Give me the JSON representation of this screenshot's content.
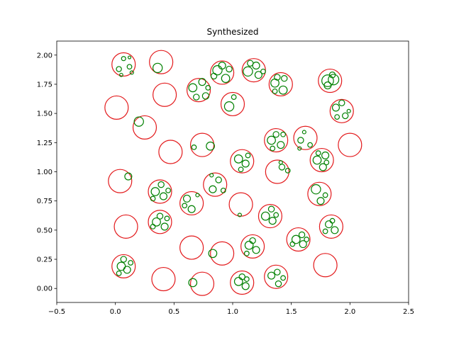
{
  "chart_data": {
    "type": "scatter",
    "title": "Synthesized",
    "xlabel": "",
    "ylabel": "",
    "xlim": [
      -0.5,
      2.5
    ],
    "ylim": [
      -0.12,
      2.12
    ],
    "xticks": [
      -0.5,
      0.0,
      0.5,
      1.0,
      1.5,
      2.0,
      2.5
    ],
    "xtick_labels": [
      "−0.5",
      "0.0",
      "0.5",
      "1.0",
      "1.5",
      "2.0",
      "2.5"
    ],
    "yticks": [
      0.0,
      0.25,
      0.5,
      0.75,
      1.0,
      1.25,
      1.5,
      1.75,
      2.0
    ],
    "ytick_labels": [
      "0.00",
      "0.25",
      "0.50",
      "0.75",
      "1.00",
      "1.25",
      "1.50",
      "1.75",
      "2.00"
    ],
    "grid": false,
    "series": [
      {
        "color": "#e31a1c",
        "radius_unit": "data_y",
        "circles": [
          {
            "x": 0.07,
            "y": 1.92,
            "r": 0.1
          },
          {
            "x": 0.39,
            "y": 1.94,
            "r": 0.1
          },
          {
            "x": 0.42,
            "y": 1.66,
            "r": 0.1
          },
          {
            "x": 0.01,
            "y": 1.55,
            "r": 0.1
          },
          {
            "x": 0.25,
            "y": 1.38,
            "r": 0.1
          },
          {
            "x": 0.47,
            "y": 1.17,
            "r": 0.1
          },
          {
            "x": 0.74,
            "y": 1.23,
            "r": 0.1
          },
          {
            "x": 0.71,
            "y": 1.7,
            "r": 0.1
          },
          {
            "x": 0.91,
            "y": 1.85,
            "r": 0.1
          },
          {
            "x": 1.0,
            "y": 1.58,
            "r": 0.1
          },
          {
            "x": 1.18,
            "y": 1.87,
            "r": 0.1
          },
          {
            "x": 1.41,
            "y": 1.75,
            "r": 0.1
          },
          {
            "x": 1.83,
            "y": 1.78,
            "r": 0.1
          },
          {
            "x": 1.93,
            "y": 1.52,
            "r": 0.1
          },
          {
            "x": 1.62,
            "y": 1.29,
            "r": 0.1
          },
          {
            "x": 1.37,
            "y": 1.27,
            "r": 0.1
          },
          {
            "x": 2.0,
            "y": 1.23,
            "r": 0.1
          },
          {
            "x": 1.76,
            "y": 1.1,
            "r": 0.1
          },
          {
            "x": 1.08,
            "y": 1.09,
            "r": 0.1
          },
          {
            "x": 1.38,
            "y": 1.0,
            "r": 0.1
          },
          {
            "x": 0.04,
            "y": 0.92,
            "r": 0.1
          },
          {
            "x": 0.38,
            "y": 0.83,
            "r": 0.1
          },
          {
            "x": 0.85,
            "y": 0.89,
            "r": 0.1
          },
          {
            "x": 0.65,
            "y": 0.73,
            "r": 0.1
          },
          {
            "x": 1.07,
            "y": 0.72,
            "r": 0.1
          },
          {
            "x": 1.74,
            "y": 0.81,
            "r": 0.1
          },
          {
            "x": 0.09,
            "y": 0.53,
            "r": 0.1
          },
          {
            "x": 0.38,
            "y": 0.57,
            "r": 0.1
          },
          {
            "x": 1.32,
            "y": 0.62,
            "r": 0.1
          },
          {
            "x": 1.84,
            "y": 0.53,
            "r": 0.1
          },
          {
            "x": 1.56,
            "y": 0.42,
            "r": 0.1
          },
          {
            "x": 1.17,
            "y": 0.36,
            "r": 0.1
          },
          {
            "x": 0.65,
            "y": 0.35,
            "r": 0.1
          },
          {
            "x": 0.91,
            "y": 0.3,
            "r": 0.1
          },
          {
            "x": 1.79,
            "y": 0.2,
            "r": 0.1
          },
          {
            "x": 0.07,
            "y": 0.19,
            "r": 0.1
          },
          {
            "x": 0.41,
            "y": 0.08,
            "r": 0.1
          },
          {
            "x": 0.74,
            "y": 0.04,
            "r": 0.1
          },
          {
            "x": 1.08,
            "y": 0.05,
            "r": 0.1
          },
          {
            "x": 1.37,
            "y": 0.1,
            "r": 0.1
          }
        ]
      },
      {
        "color": "#008000",
        "radius_unit": "data_y",
        "circles": [
          {
            "x": 0.03,
            "y": 1.88,
            "r": 0.022
          },
          {
            "x": 0.07,
            "y": 1.97,
            "r": 0.018
          },
          {
            "x": 0.12,
            "y": 1.9,
            "r": 0.02
          },
          {
            "x": 0.05,
            "y": 1.83,
            "r": 0.014
          },
          {
            "x": 0.12,
            "y": 1.98,
            "r": 0.012
          },
          {
            "x": 0.14,
            "y": 1.85,
            "r": 0.015
          },
          {
            "x": 0.36,
            "y": 1.89,
            "r": 0.04
          },
          {
            "x": 0.66,
            "y": 1.72,
            "r": 0.035
          },
          {
            "x": 0.74,
            "y": 1.77,
            "r": 0.03
          },
          {
            "x": 0.77,
            "y": 1.65,
            "r": 0.028
          },
          {
            "x": 0.69,
            "y": 1.64,
            "r": 0.025
          },
          {
            "x": 0.79,
            "y": 1.72,
            "r": 0.02
          },
          {
            "x": 0.87,
            "y": 1.87,
            "r": 0.04
          },
          {
            "x": 0.94,
            "y": 1.8,
            "r": 0.035
          },
          {
            "x": 0.91,
            "y": 1.91,
            "r": 0.03
          },
          {
            "x": 0.97,
            "y": 1.88,
            "r": 0.025
          },
          {
            "x": 0.84,
            "y": 1.82,
            "r": 0.025
          },
          {
            "x": 0.97,
            "y": 1.56,
            "r": 0.04
          },
          {
            "x": 1.01,
            "y": 1.64,
            "r": 0.02
          },
          {
            "x": 1.13,
            "y": 1.86,
            "r": 0.04
          },
          {
            "x": 1.2,
            "y": 1.91,
            "r": 0.03
          },
          {
            "x": 1.22,
            "y": 1.83,
            "r": 0.03
          },
          {
            "x": 1.15,
            "y": 1.93,
            "r": 0.025
          },
          {
            "x": 1.26,
            "y": 1.86,
            "r": 0.02
          },
          {
            "x": 1.36,
            "y": 1.76,
            "r": 0.035
          },
          {
            "x": 1.43,
            "y": 1.7,
            "r": 0.035
          },
          {
            "x": 1.38,
            "y": 1.81,
            "r": 0.025
          },
          {
            "x": 1.44,
            "y": 1.8,
            "r": 0.025
          },
          {
            "x": 1.36,
            "y": 1.69,
            "r": 0.02
          },
          {
            "x": 1.81,
            "y": 1.78,
            "r": 0.05
          },
          {
            "x": 1.86,
            "y": 1.79,
            "r": 0.045
          },
          {
            "x": 1.81,
            "y": 1.74,
            "r": 0.03
          },
          {
            "x": 1.85,
            "y": 1.83,
            "r": 0.025
          },
          {
            "x": 1.88,
            "y": 1.55,
            "r": 0.03
          },
          {
            "x": 1.93,
            "y": 1.59,
            "r": 0.025
          },
          {
            "x": 1.96,
            "y": 1.48,
            "r": 0.025
          },
          {
            "x": 1.89,
            "y": 1.47,
            "r": 0.02
          },
          {
            "x": 1.99,
            "y": 1.52,
            "r": 0.015
          },
          {
            "x": 0.2,
            "y": 1.43,
            "r": 0.04
          },
          {
            "x": 0.67,
            "y": 1.21,
            "r": 0.02
          },
          {
            "x": 0.81,
            "y": 1.22,
            "r": 0.035
          },
          {
            "x": 1.33,
            "y": 1.27,
            "r": 0.035
          },
          {
            "x": 1.41,
            "y": 1.23,
            "r": 0.03
          },
          {
            "x": 1.37,
            "y": 1.32,
            "r": 0.025
          },
          {
            "x": 1.34,
            "y": 1.2,
            "r": 0.02
          },
          {
            "x": 1.43,
            "y": 1.32,
            "r": 0.02
          },
          {
            "x": 1.58,
            "y": 1.27,
            "r": 0.025
          },
          {
            "x": 1.66,
            "y": 1.23,
            "r": 0.02
          },
          {
            "x": 1.61,
            "y": 1.34,
            "r": 0.015
          },
          {
            "x": 1.57,
            "y": 1.2,
            "r": 0.015
          },
          {
            "x": 1.72,
            "y": 1.1,
            "r": 0.035
          },
          {
            "x": 1.79,
            "y": 1.14,
            "r": 0.03
          },
          {
            "x": 1.77,
            "y": 1.04,
            "r": 0.03
          },
          {
            "x": 1.8,
            "y": 1.08,
            "r": 0.02
          },
          {
            "x": 1.73,
            "y": 1.16,
            "r": 0.02
          },
          {
            "x": 1.05,
            "y": 1.11,
            "r": 0.035
          },
          {
            "x": 1.11,
            "y": 1.07,
            "r": 0.03
          },
          {
            "x": 1.07,
            "y": 1.02,
            "r": 0.02
          },
          {
            "x": 1.13,
            "y": 1.14,
            "r": 0.02
          },
          {
            "x": 1.42,
            "y": 1.04,
            "r": 0.025
          },
          {
            "x": 1.47,
            "y": 1.01,
            "r": 0.02
          },
          {
            "x": 1.41,
            "y": 1.08,
            "r": 0.015
          },
          {
            "x": 0.11,
            "y": 0.96,
            "r": 0.03
          },
          {
            "x": 0.34,
            "y": 0.83,
            "r": 0.035
          },
          {
            "x": 0.41,
            "y": 0.79,
            "r": 0.03
          },
          {
            "x": 0.39,
            "y": 0.89,
            "r": 0.025
          },
          {
            "x": 0.45,
            "y": 0.84,
            "r": 0.02
          },
          {
            "x": 0.32,
            "y": 0.77,
            "r": 0.02
          },
          {
            "x": 0.83,
            "y": 0.85,
            "r": 0.03
          },
          {
            "x": 0.88,
            "y": 0.93,
            "r": 0.025
          },
          {
            "x": 0.92,
            "y": 0.84,
            "r": 0.02
          },
          {
            "x": 0.82,
            "y": 0.97,
            "r": 0.015
          },
          {
            "x": 0.61,
            "y": 0.77,
            "r": 0.03
          },
          {
            "x": 0.65,
            "y": 0.68,
            "r": 0.03
          },
          {
            "x": 0.59,
            "y": 0.71,
            "r": 0.02
          },
          {
            "x": 0.7,
            "y": 0.8,
            "r": 0.015
          },
          {
            "x": 1.71,
            "y": 0.85,
            "r": 0.04
          },
          {
            "x": 1.75,
            "y": 0.75,
            "r": 0.03
          },
          {
            "x": 1.79,
            "y": 0.8,
            "r": 0.02
          },
          {
            "x": 1.06,
            "y": 0.63,
            "r": 0.015
          },
          {
            "x": 0.35,
            "y": 0.57,
            "r": 0.035
          },
          {
            "x": 0.42,
            "y": 0.53,
            "r": 0.03
          },
          {
            "x": 0.38,
            "y": 0.62,
            "r": 0.025
          },
          {
            "x": 0.44,
            "y": 0.6,
            "r": 0.02
          },
          {
            "x": 0.32,
            "y": 0.53,
            "r": 0.02
          },
          {
            "x": 1.28,
            "y": 0.62,
            "r": 0.035
          },
          {
            "x": 1.34,
            "y": 0.58,
            "r": 0.03
          },
          {
            "x": 1.33,
            "y": 0.68,
            "r": 0.025
          },
          {
            "x": 1.37,
            "y": 0.63,
            "r": 0.02
          },
          {
            "x": 1.82,
            "y": 0.55,
            "r": 0.03
          },
          {
            "x": 1.87,
            "y": 0.5,
            "r": 0.03
          },
          {
            "x": 1.85,
            "y": 0.58,
            "r": 0.02
          },
          {
            "x": 1.79,
            "y": 0.49,
            "r": 0.02
          },
          {
            "x": 1.54,
            "y": 0.42,
            "r": 0.035
          },
          {
            "x": 1.6,
            "y": 0.38,
            "r": 0.03
          },
          {
            "x": 1.59,
            "y": 0.46,
            "r": 0.025
          },
          {
            "x": 1.51,
            "y": 0.38,
            "r": 0.02
          },
          {
            "x": 1.63,
            "y": 0.42,
            "r": 0.02
          },
          {
            "x": 1.14,
            "y": 0.37,
            "r": 0.035
          },
          {
            "x": 1.2,
            "y": 0.33,
            "r": 0.03
          },
          {
            "x": 1.17,
            "y": 0.41,
            "r": 0.025
          },
          {
            "x": 1.12,
            "y": 0.3,
            "r": 0.02
          },
          {
            "x": 0.83,
            "y": 0.3,
            "r": 0.035
          },
          {
            "x": 0.05,
            "y": 0.19,
            "r": 0.035
          },
          {
            "x": 0.1,
            "y": 0.16,
            "r": 0.03
          },
          {
            "x": 0.07,
            "y": 0.25,
            "r": 0.025
          },
          {
            "x": 0.13,
            "y": 0.22,
            "r": 0.02
          },
          {
            "x": 0.03,
            "y": 0.13,
            "r": 0.02
          },
          {
            "x": 0.66,
            "y": 0.05,
            "r": 0.035
          },
          {
            "x": 1.05,
            "y": 0.06,
            "r": 0.035
          },
          {
            "x": 1.11,
            "y": 0.02,
            "r": 0.03
          },
          {
            "x": 1.08,
            "y": 0.1,
            "r": 0.025
          },
          {
            "x": 1.12,
            "y": 0.08,
            "r": 0.02
          },
          {
            "x": 1.33,
            "y": 0.11,
            "r": 0.03
          },
          {
            "x": 1.38,
            "y": 0.14,
            "r": 0.025
          },
          {
            "x": 1.39,
            "y": 0.04,
            "r": 0.025
          },
          {
            "x": 1.43,
            "y": 0.09,
            "r": 0.02
          }
        ]
      }
    ]
  }
}
